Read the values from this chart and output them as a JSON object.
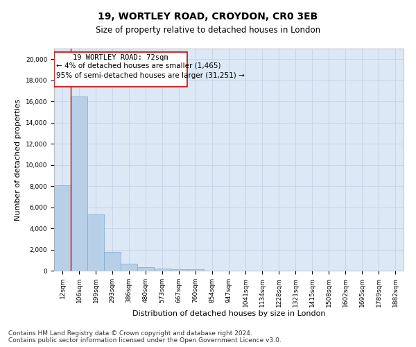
{
  "title_line1": "19, WORTLEY ROAD, CROYDON, CR0 3EB",
  "title_line2": "Size of property relative to detached houses in London",
  "xlabel": "Distribution of detached houses by size in London",
  "ylabel": "Number of detached properties",
  "categories": [
    "12sqm",
    "106sqm",
    "199sqm",
    "293sqm",
    "386sqm",
    "480sqm",
    "573sqm",
    "667sqm",
    "760sqm",
    "854sqm",
    "947sqm",
    "1041sqm",
    "1134sqm",
    "1228sqm",
    "1321sqm",
    "1415sqm",
    "1508sqm",
    "1602sqm",
    "1695sqm",
    "1789sqm",
    "1882sqm"
  ],
  "values": [
    8100,
    16500,
    5300,
    1750,
    650,
    330,
    190,
    150,
    130,
    0,
    0,
    0,
    0,
    0,
    0,
    0,
    0,
    0,
    0,
    0,
    0
  ],
  "bar_color": "#b8cfe8",
  "bar_edge_color": "#7aaacf",
  "annotation_box_color": "#ffffff",
  "annotation_border_color": "#cc0000",
  "annotation_line_color": "#cc0000",
  "annotation_text_line1": "19 WORTLEY ROAD: 72sqm",
  "annotation_text_line2": "← 4% of detached houses are smaller (1,465)",
  "annotation_text_line3": "95% of semi-detached houses are larger (31,251) →",
  "ylim": [
    0,
    21000
  ],
  "yticks": [
    0,
    2000,
    4000,
    6000,
    8000,
    10000,
    12000,
    14000,
    16000,
    18000,
    20000
  ],
  "grid_color": "#c8d4e8",
  "bg_color": "#dce8f5",
  "footer_line1": "Contains HM Land Registry data © Crown copyright and database right 2024.",
  "footer_line2": "Contains public sector information licensed under the Open Government Licence v3.0.",
  "title_fontsize": 10,
  "subtitle_fontsize": 8.5,
  "axis_label_fontsize": 8,
  "tick_fontsize": 6.5,
  "annotation_fontsize": 7.5,
  "footer_fontsize": 6.5
}
